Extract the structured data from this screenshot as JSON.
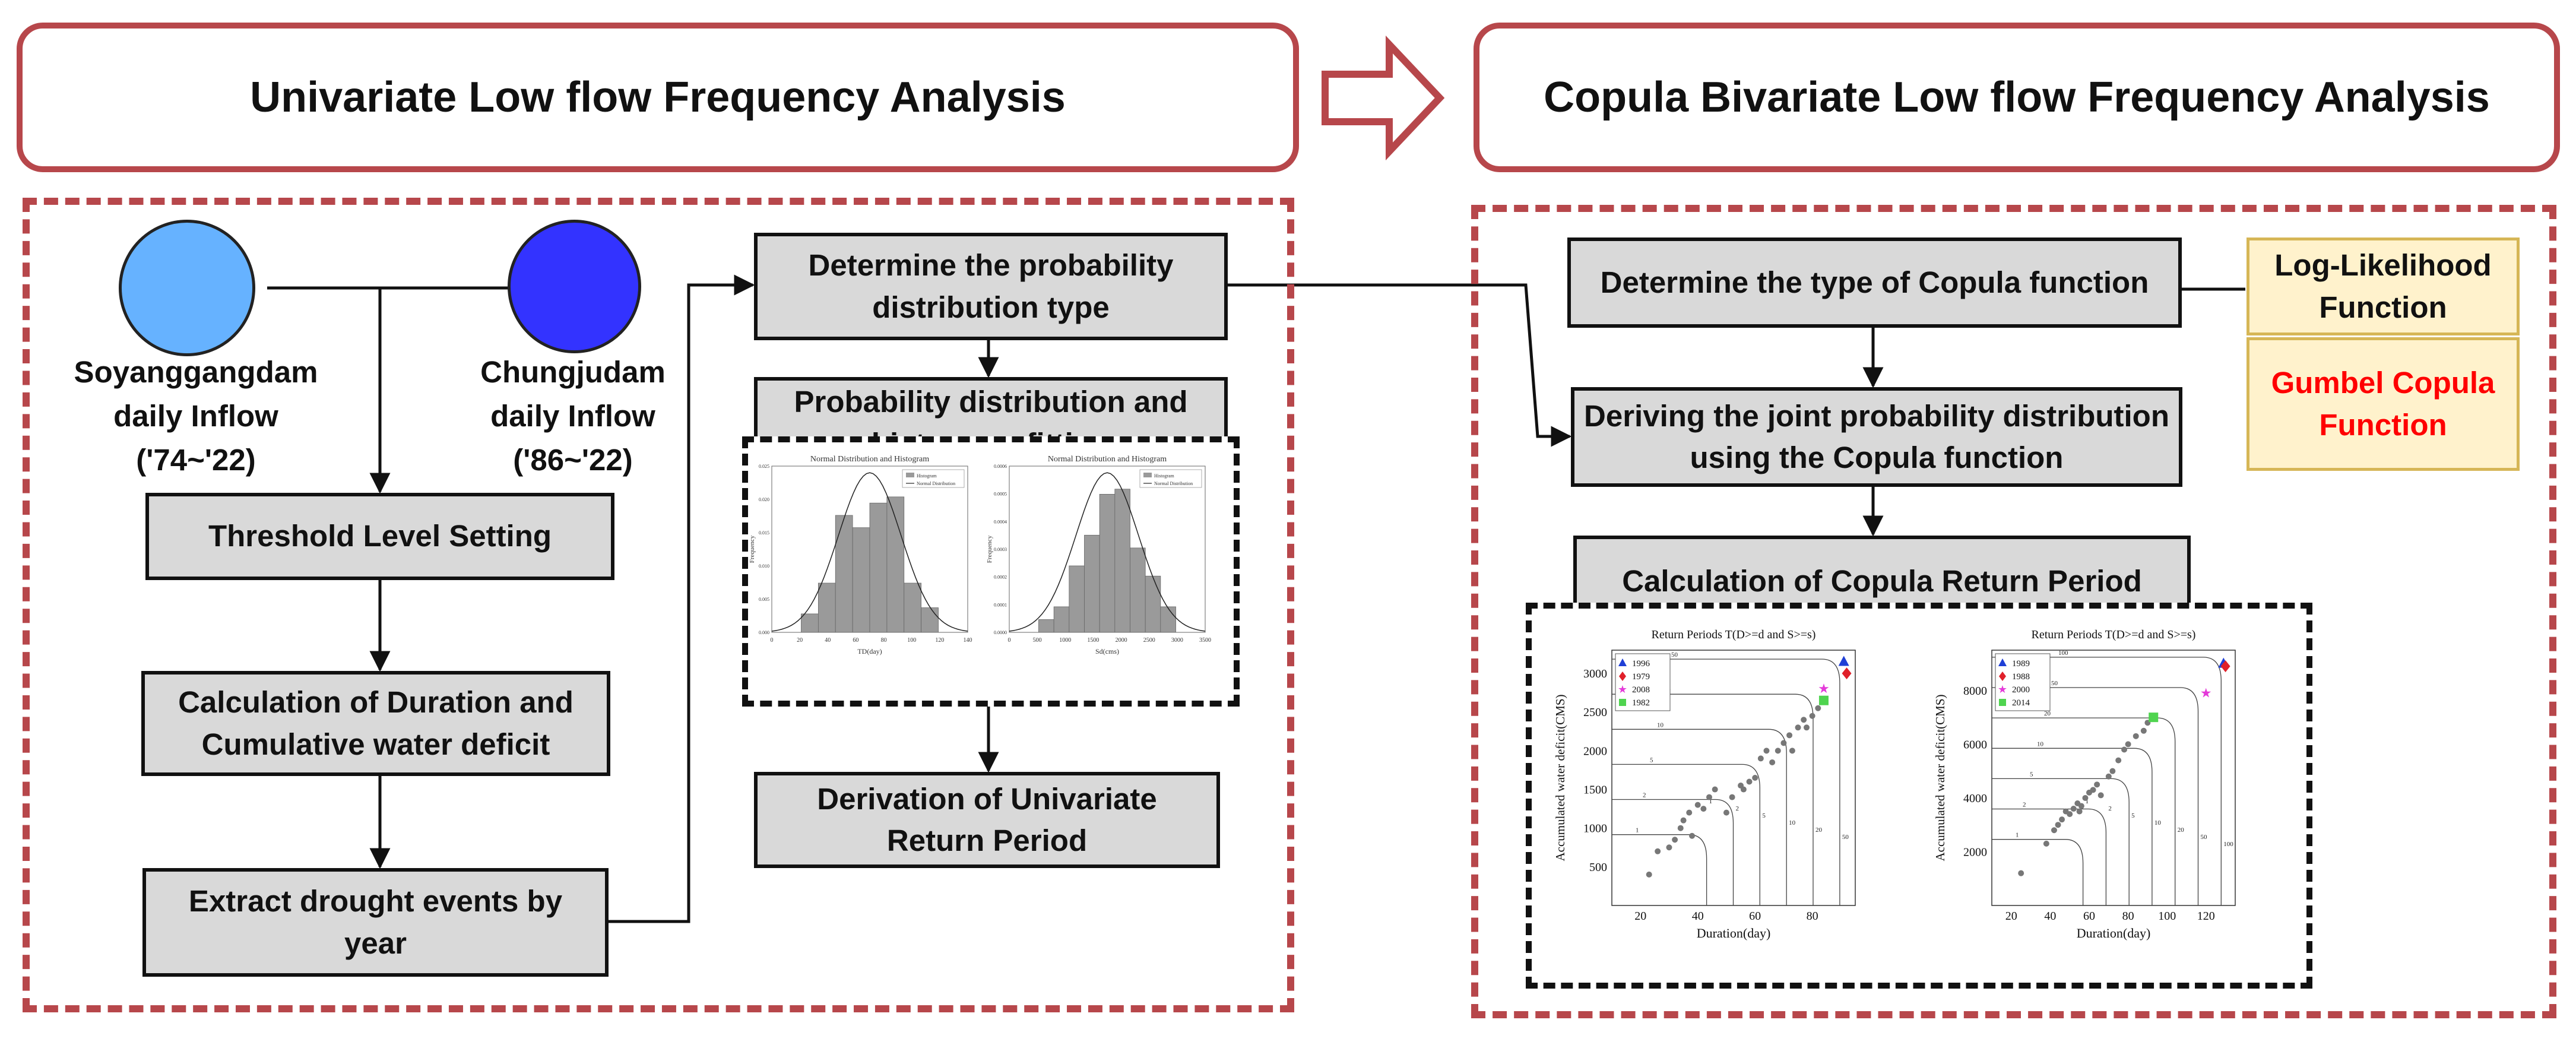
{
  "headers": {
    "left": "Univariate Low flow Frequency Analysis",
    "right": "Copula Bivariate Low flow Frequency Analysis"
  },
  "colors": {
    "accent_red": "#b7474b",
    "box_fill": "#d9d9d9",
    "circle_light": "#66b2ff",
    "circle_dark": "#3333ff",
    "note_fill": "#fff2cc",
    "note_border": "#d6b656",
    "copula_red": "#ff0000"
  },
  "left": {
    "sources": [
      {
        "label": "Soyanggangdam\ndaily Inflow\n('74~'22)"
      },
      {
        "label": "Chungjudam\ndaily Inflow\n('86~'22)"
      }
    ],
    "steps": {
      "threshold": "Threshold Level Setting",
      "duration": "Calculation of Duration and Cumulative water deficit",
      "extract": "Extract drought events by year",
      "determine_dist": "Determine the probability distribution type",
      "fitting": "Probability distribution and histogram fitting",
      "univariate_rp": "Derivation of Univariate Return Period"
    },
    "histograms": [
      {
        "title": "Normal Distribution and Histogram",
        "xlabel": "TD(day)",
        "ylabel": "Frequency",
        "legend": [
          "Histogram",
          "Normal Distribution"
        ],
        "xticks": [
          "0",
          "20",
          "40",
          "60",
          "80",
          "100",
          "120",
          "140"
        ],
        "yticks": [
          "0.000",
          "0.005",
          "0.010",
          "0.015",
          "0.020",
          "0.025"
        ],
        "bars": [
          0.003,
          0.008,
          0.019,
          0.017,
          0.021,
          0.022,
          0.008,
          0.004
        ],
        "ymax": 0.027
      },
      {
        "title": "Normal Distribution and Histogram",
        "xlabel": "Sd(cms)",
        "ylabel": "Frequency",
        "legend": [
          "Histogram",
          "Normal Distribution"
        ],
        "xticks": [
          "0",
          "500",
          "1000",
          "1500",
          "2000",
          "2500",
          "3000",
          "3500"
        ],
        "yticks": [
          "0.0000",
          "0.0001",
          "0.0002",
          "0.0003",
          "0.0004",
          "0.0005",
          "0.0006"
        ],
        "bars": [
          5e-05,
          0.0001,
          0.00026,
          0.00038,
          0.00054,
          0.00056,
          0.00033,
          0.00022,
          0.0001
        ],
        "ymax": 0.00065
      }
    ]
  },
  "right": {
    "steps": {
      "copula_type": "Determine the type of Copula function",
      "joint": "Deriving the joint probability distribution using the Copula function",
      "copula_rp": "Calculation of Copula Return Period"
    },
    "notes": {
      "loglik": "Log-Likelihood Function",
      "gumbel": "Gumbel Copula Function"
    },
    "chart_data": [
      {
        "type": "scatter",
        "title": "Return Periods T(D>=d and S>=s)",
        "xlabel": "Duration(day)",
        "ylabel": "Accumulated water deficit(CMS)",
        "xlim": [
          10,
          95
        ],
        "ylim": [
          0,
          3300
        ],
        "xticks": [
          20,
          40,
          60,
          80
        ],
        "yticks": [
          500,
          1000,
          1500,
          2000,
          2500,
          3000
        ],
        "legend": [
          "1996",
          "1979",
          "2008",
          "1982"
        ],
        "contour_labels": [
          "1",
          "2",
          "5",
          "10",
          "20",
          "50"
        ],
        "points": [
          [
            23,
            400
          ],
          [
            26,
            700
          ],
          [
            30,
            750
          ],
          [
            32,
            850
          ],
          [
            34,
            1000
          ],
          [
            35,
            1100
          ],
          [
            37,
            1200
          ],
          [
            38,
            900
          ],
          [
            40,
            1300
          ],
          [
            42,
            1250
          ],
          [
            44,
            1400
          ],
          [
            46,
            1500
          ],
          [
            50,
            1200
          ],
          [
            52,
            1400
          ],
          [
            55,
            1550
          ],
          [
            56,
            1500
          ],
          [
            58,
            1600
          ],
          [
            60,
            1650
          ],
          [
            62,
            1900
          ],
          [
            64,
            2000
          ],
          [
            66,
            1850
          ],
          [
            68,
            2000
          ],
          [
            70,
            2100
          ],
          [
            72,
            2200
          ],
          [
            73,
            2000
          ],
          [
            75,
            2300
          ],
          [
            77,
            2400
          ],
          [
            78,
            2300
          ],
          [
            80,
            2450
          ],
          [
            82,
            2550
          ]
        ],
        "highlights": [
          {
            "year": "1996",
            "x": 91,
            "y": 3150,
            "color": "#1f3fd6",
            "marker": "triangle"
          },
          {
            "year": "1979",
            "x": 92,
            "y": 3000,
            "color": "#e0202a",
            "marker": "diamond"
          },
          {
            "year": "2008",
            "x": 84,
            "y": 2800,
            "color": "#e43ad9",
            "marker": "star"
          },
          {
            "year": "1982",
            "x": 84,
            "y": 2650,
            "color": "#4fd44f",
            "marker": "square"
          }
        ]
      },
      {
        "type": "scatter",
        "title": "Return Periods T(D>=d and S>=s)",
        "xlabel": "Duration(day)",
        "ylabel": "Accumulated water deficit(CMS)",
        "xlim": [
          10,
          135
        ],
        "ylim": [
          0,
          9500
        ],
        "xticks": [
          20,
          40,
          60,
          80,
          100,
          120
        ],
        "yticks": [
          2000,
          4000,
          6000,
          8000
        ],
        "legend": [
          "1989",
          "1988",
          "2000",
          "2014"
        ],
        "contour_labels": [
          "1",
          "2",
          "5",
          "10",
          "20",
          "50",
          "100"
        ],
        "points": [
          [
            25,
            1200
          ],
          [
            38,
            2300
          ],
          [
            42,
            2800
          ],
          [
            44,
            3000
          ],
          [
            46,
            3200
          ],
          [
            48,
            3500
          ],
          [
            50,
            3400
          ],
          [
            52,
            3600
          ],
          [
            54,
            3800
          ],
          [
            55,
            3500
          ],
          [
            56,
            3700
          ],
          [
            58,
            4000
          ],
          [
            60,
            4200
          ],
          [
            62,
            4300
          ],
          [
            64,
            4500
          ],
          [
            66,
            4100
          ],
          [
            70,
            4800
          ],
          [
            72,
            5000
          ],
          [
            75,
            5400
          ],
          [
            78,
            5800
          ],
          [
            80,
            6000
          ],
          [
            84,
            6300
          ],
          [
            88,
            6500
          ],
          [
            90,
            6800
          ]
        ],
        "highlights": [
          {
            "year": "1989",
            "x": 129,
            "y": 9000,
            "color": "#1f3fd6",
            "marker": "triangle"
          },
          {
            "year": "1988",
            "x": 130,
            "y": 8900,
            "color": "#e0202a",
            "marker": "diamond"
          },
          {
            "year": "2000",
            "x": 120,
            "y": 7900,
            "color": "#e43ad9",
            "marker": "star"
          },
          {
            "year": "2014",
            "x": 93,
            "y": 7000,
            "color": "#4fd44f",
            "marker": "square"
          }
        ]
      }
    ]
  }
}
